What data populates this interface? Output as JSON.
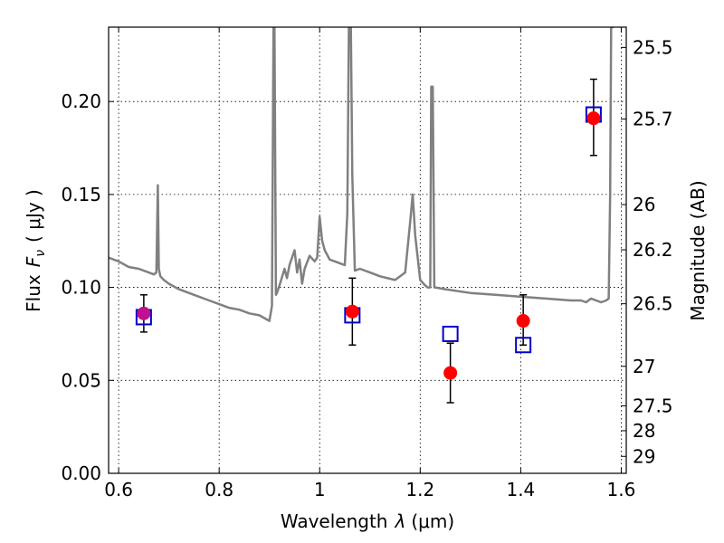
{
  "chart_data": {
    "type": "scatter",
    "xlabel_prefix": "Wavelength",
    "xlabel_var": "λ",
    "xlabel_unit": "(μm)",
    "ylabel_prefix": "Flux",
    "ylabel_var": "F",
    "ylabel_sub": "ν",
    "ylabel_unit": "( μJy )",
    "y2label": "Magnitude (AB)",
    "xlim": [
      0.58,
      1.61
    ],
    "ylim": [
      0.0,
      0.24
    ],
    "grid": true,
    "x_ticks": [
      0.6,
      0.8,
      1.0,
      1.2,
      1.4,
      1.6
    ],
    "x_tick_labels": [
      "0.6",
      "0.8",
      "1",
      "1.2",
      "1.4",
      "1.6"
    ],
    "y_ticks": [
      0.0,
      0.05,
      0.1,
      0.15,
      0.2
    ],
    "y_tick_labels": [
      "0.00",
      "0.05",
      "0.10",
      "0.15",
      "0.20"
    ],
    "mag_ticks": [
      25.5,
      25.7,
      26,
      26.2,
      26.5,
      27,
      27.5,
      28,
      29
    ],
    "mag_tick_labels": [
      "25.5",
      "25.7",
      "26",
      "26.2",
      "26.5",
      "27",
      "27.5",
      "28",
      "29"
    ],
    "series": [
      {
        "kind": "observed",
        "color": "#ff0000",
        "x": [
          0.65,
          1.065,
          1.26,
          1.405,
          1.545
        ],
        "y": [
          0.086,
          0.087,
          0.054,
          0.082,
          0.191
        ],
        "yerr_low": [
          0.01,
          0.018,
          0.016,
          0.013,
          0.02
        ],
        "yerr_high": [
          0.01,
          0.018,
          0.016,
          0.014,
          0.021
        ]
      },
      {
        "kind": "model-photometry",
        "color": "#0000cc",
        "x": [
          0.65,
          1.065,
          1.26,
          1.405,
          1.545
        ],
        "y": [
          0.084,
          0.085,
          0.075,
          0.069,
          0.193
        ]
      },
      {
        "kind": "model-spectrum",
        "color": "#808080",
        "x": [
          0.58,
          0.6,
          0.62,
          0.64,
          0.66,
          0.67,
          0.675,
          0.678,
          0.68,
          0.683,
          0.69,
          0.7,
          0.72,
          0.75,
          0.78,
          0.8,
          0.82,
          0.84,
          0.86,
          0.88,
          0.9,
          0.905,
          0.908,
          0.91,
          0.913,
          0.915,
          0.92,
          0.93,
          0.935,
          0.94,
          0.95,
          0.955,
          0.96,
          0.965,
          0.97,
          0.98,
          0.99,
          0.995,
          1.0,
          1.005,
          1.01,
          1.02,
          1.03,
          1.04,
          1.05,
          1.055,
          1.058,
          1.062,
          1.065,
          1.07,
          1.08,
          1.1,
          1.12,
          1.15,
          1.17,
          1.18,
          1.185,
          1.19,
          1.2,
          1.21,
          1.215,
          1.22,
          1.222,
          1.225,
          1.228,
          1.23,
          1.25,
          1.3,
          1.35,
          1.4,
          1.45,
          1.5,
          1.52,
          1.53,
          1.54,
          1.56,
          1.57,
          1.575,
          1.578,
          1.58,
          1.585
        ],
        "y": [
          0.116,
          0.114,
          0.111,
          0.11,
          0.108,
          0.107,
          0.108,
          0.155,
          0.11,
          0.106,
          0.104,
          0.102,
          0.099,
          0.096,
          0.093,
          0.091,
          0.089,
          0.088,
          0.086,
          0.085,
          0.082,
          0.09,
          0.24,
          0.24,
          0.096,
          0.097,
          0.101,
          0.11,
          0.105,
          0.112,
          0.12,
          0.108,
          0.115,
          0.102,
          0.11,
          0.117,
          0.114,
          0.116,
          0.138,
          0.125,
          0.12,
          0.115,
          0.114,
          0.113,
          0.112,
          0.14,
          0.24,
          0.24,
          0.16,
          0.109,
          0.11,
          0.108,
          0.106,
          0.104,
          0.108,
          0.135,
          0.15,
          0.128,
          0.104,
          0.101,
          0.1,
          0.1,
          0.208,
          0.208,
          0.1,
          0.1,
          0.099,
          0.097,
          0.096,
          0.095,
          0.094,
          0.093,
          0.093,
          0.092,
          0.094,
          0.092,
          0.093,
          0.094,
          0.15,
          0.24,
          0.24
        ]
      }
    ]
  }
}
